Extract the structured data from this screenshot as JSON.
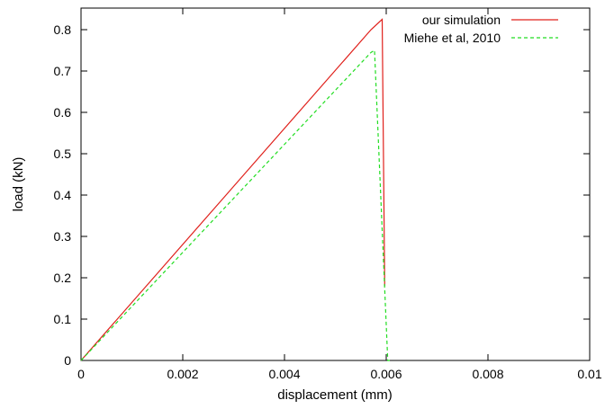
{
  "chart_data": {
    "type": "line",
    "title": "",
    "xlabel": "displacement (mm)",
    "ylabel": "load (kN)",
    "xlim": [
      0,
      0.01
    ],
    "ylim": [
      0,
      0.85
    ],
    "x_ticks": [
      {
        "value": 0,
        "label": "0"
      },
      {
        "value": 0.002,
        "label": "0.002"
      },
      {
        "value": 0.004,
        "label": "0.004"
      },
      {
        "value": 0.006,
        "label": "0.006"
      },
      {
        "value": 0.008,
        "label": "0.008"
      },
      {
        "value": 0.01,
        "label": "0.01"
      }
    ],
    "y_ticks": [
      {
        "value": 0,
        "label": "0"
      },
      {
        "value": 0.1,
        "label": "0.1"
      },
      {
        "value": 0.2,
        "label": "0.2"
      },
      {
        "value": 0.3,
        "label": "0.3"
      },
      {
        "value": 0.4,
        "label": "0.4"
      },
      {
        "value": 0.5,
        "label": "0.5"
      },
      {
        "value": 0.6,
        "label": "0.6"
      },
      {
        "value": 0.7,
        "label": "0.7"
      },
      {
        "value": 0.8,
        "label": "0.8"
      }
    ],
    "grid": false,
    "legend_position": "top-right",
    "series": [
      {
        "name": "our simulation",
        "color": "#e0201b",
        "dash": "solid",
        "x": [
          0,
          0.0057,
          0.00592,
          0.00597
        ],
        "y": [
          0,
          0.8,
          0.825,
          0.18
        ]
      },
      {
        "name": "Miehe et al, 2010",
        "color": "#22dd22",
        "dash": "dashed",
        "x": [
          0,
          0.0057,
          0.00577,
          0.00603,
          0.00607
        ],
        "y": [
          0,
          0.745,
          0.75,
          0.0,
          0.0
        ]
      }
    ]
  }
}
